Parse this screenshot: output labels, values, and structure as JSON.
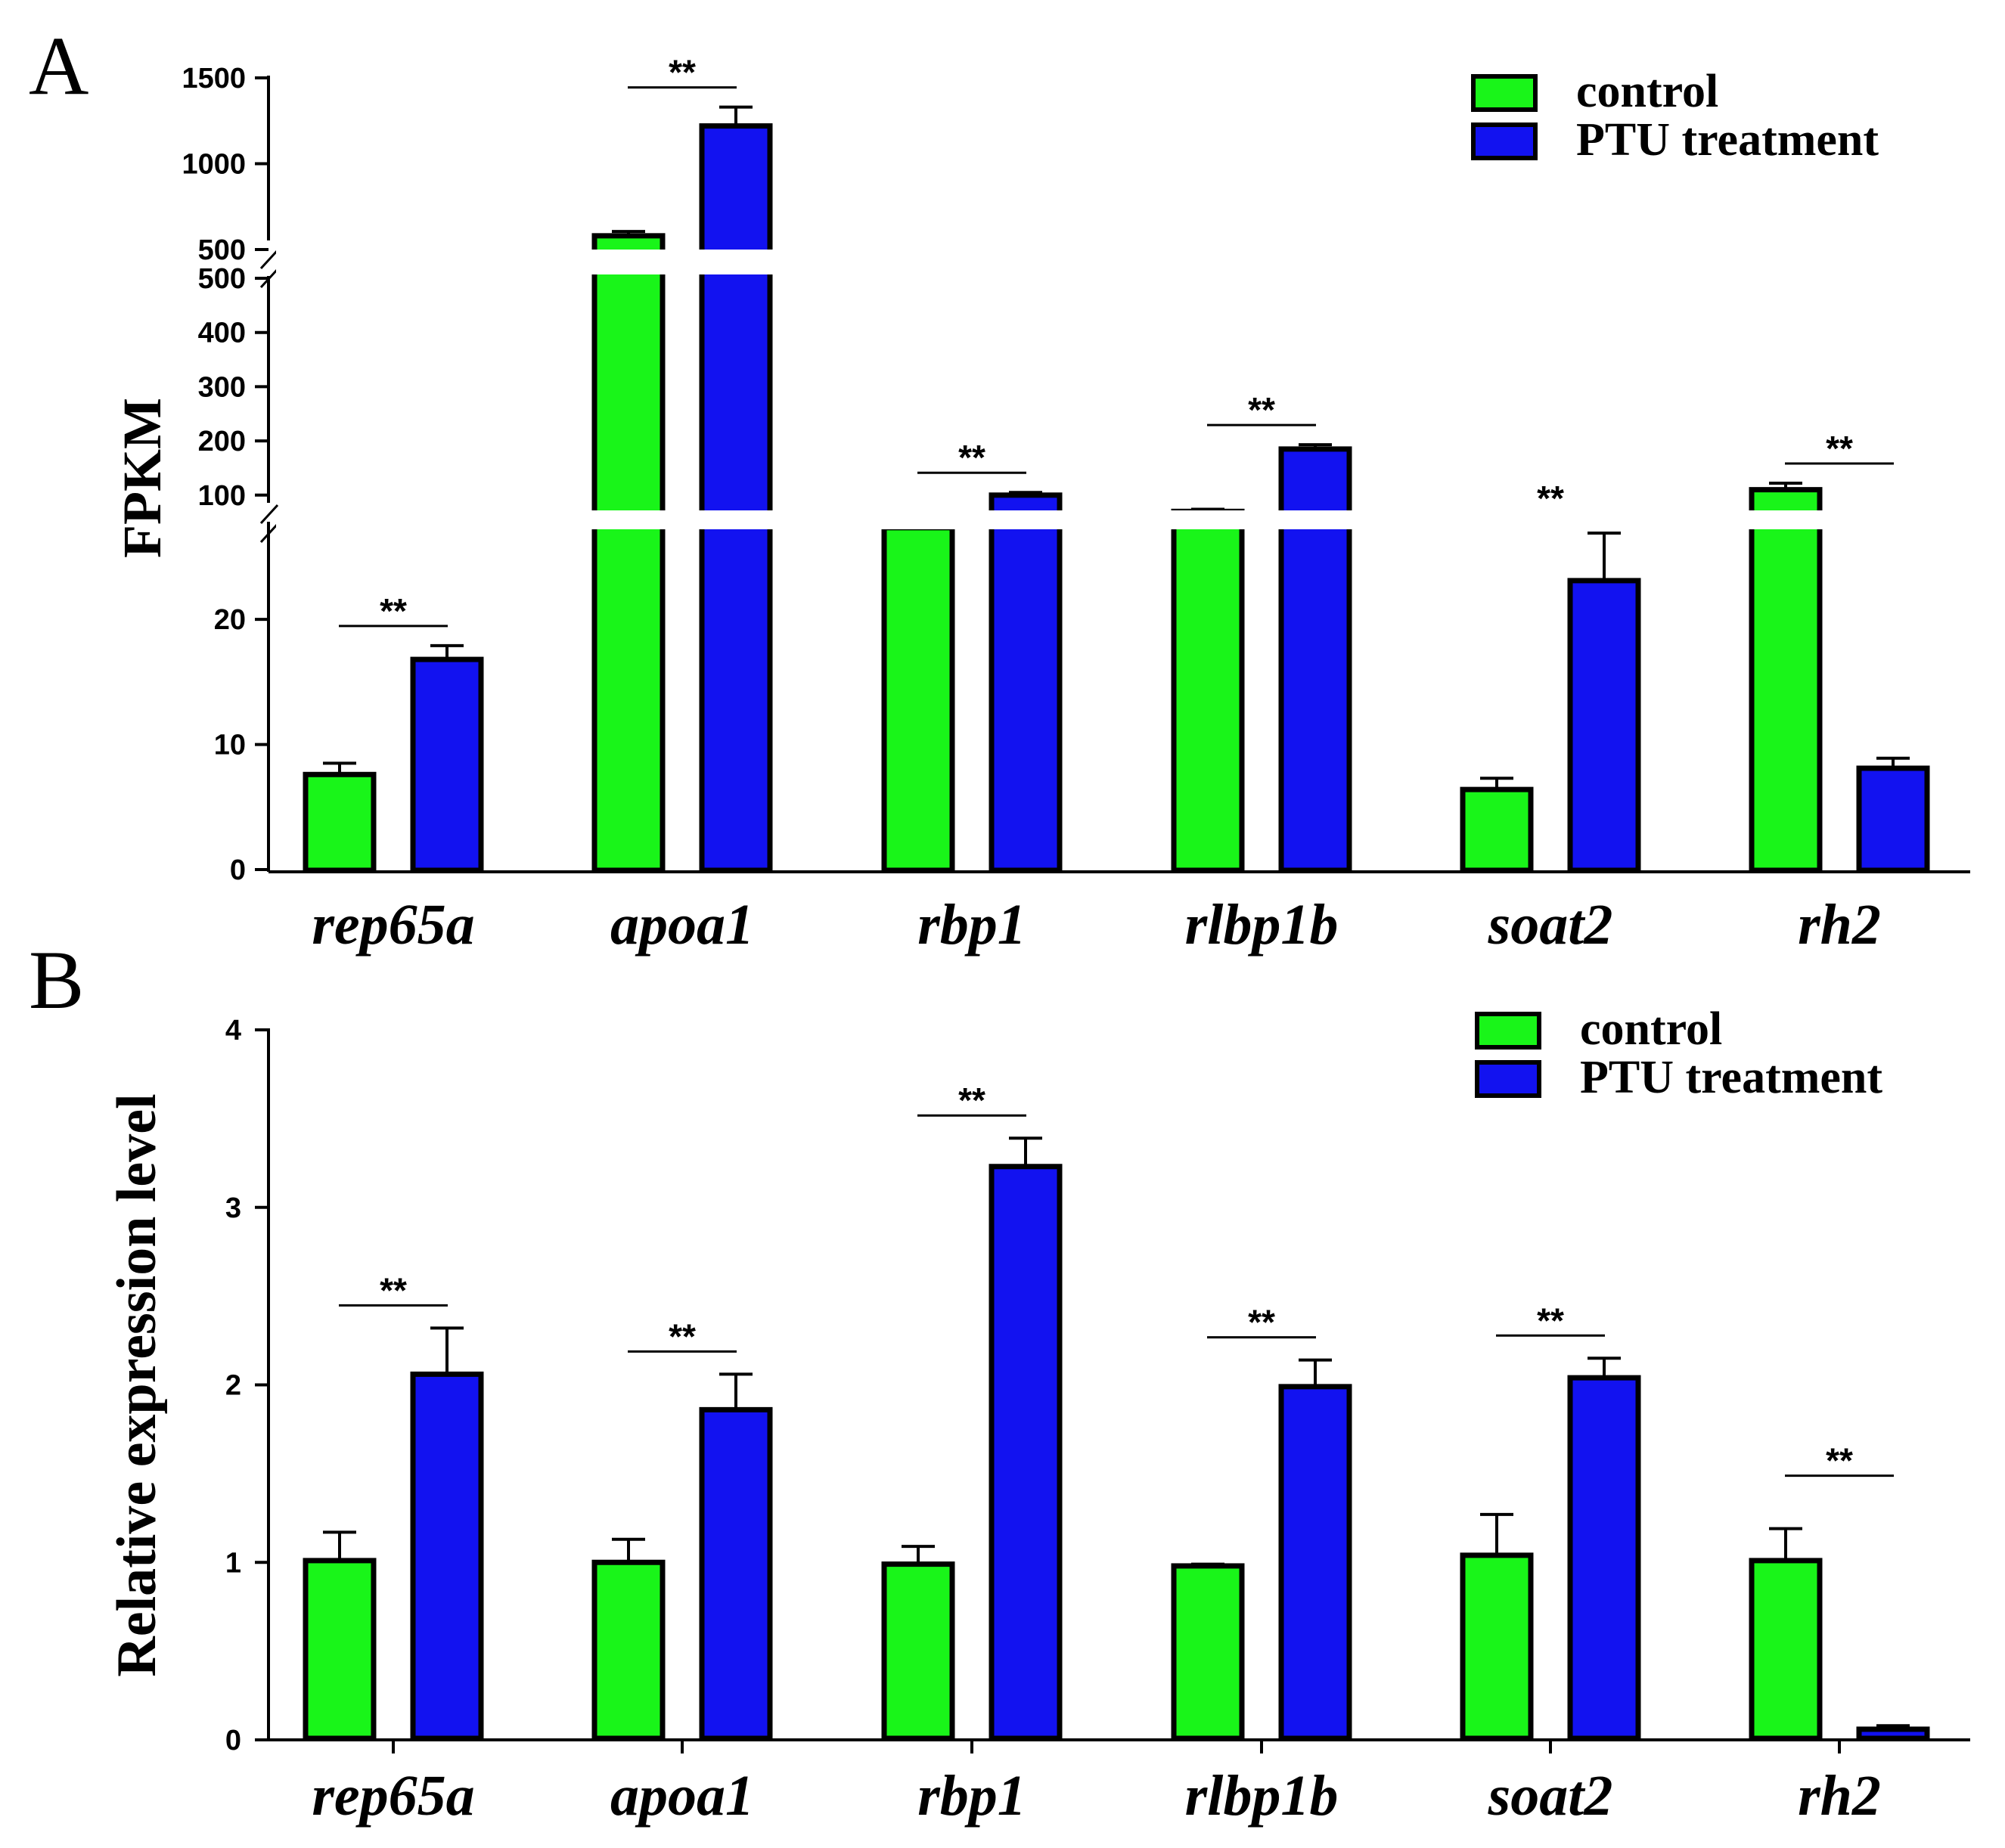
{
  "colors": {
    "control": "#19f519",
    "ptu": "#1212f0",
    "outline": "#000000"
  },
  "chart_data": [
    {
      "panel": "A",
      "type": "bar",
      "ylabel": "FPKM",
      "categories": [
        "rep65a",
        "apoa1",
        "rbp1",
        "rlbp1b",
        "soat2",
        "rh2"
      ],
      "y_segments": [
        {
          "range": [
            0,
            24
          ],
          "ticks": [
            "0",
            "10",
            "20"
          ]
        },
        {
          "range": [
            30,
            500
          ],
          "ticks": [
            "100",
            "200",
            "300",
            "400",
            "500"
          ]
        },
        {
          "range": [
            500,
            1500
          ],
          "ticks": [
            "500",
            "1000",
            "1500"
          ]
        }
      ],
      "series": [
        {
          "name": "control",
          "values": [
            7.6,
            580,
            40,
            70,
            6.4,
            110
          ],
          "errors": [
            0.9,
            25,
            3,
            4,
            0.9,
            12
          ]
        },
        {
          "name": "PTU treatment",
          "values": [
            16.8,
            1220,
            100,
            185,
            23.1,
            8.1
          ],
          "errors": [
            1.1,
            110,
            5,
            8,
            1.7,
            0.8
          ]
        }
      ],
      "significance": [
        "**",
        "**",
        "**",
        "**",
        "**",
        "**"
      ],
      "legend": {
        "position": "top-right",
        "entries": [
          "control",
          "PTU treatment"
        ]
      }
    },
    {
      "panel": "B",
      "type": "bar",
      "ylabel": "Relative expression level",
      "categories": [
        "rep65a",
        "apoa1",
        "rbp1",
        "rlbp1b",
        "soat2",
        "rh2"
      ],
      "ylim": [
        0,
        4
      ],
      "yticks": [
        "0",
        "1",
        "2",
        "3",
        "4"
      ],
      "series": [
        {
          "name": "control",
          "values": [
            1.01,
            1.0,
            0.99,
            0.98,
            1.04,
            1.01
          ],
          "errors": [
            0.16,
            0.13,
            0.1,
            0.01,
            0.23,
            0.18
          ]
        },
        {
          "name": "PTU treatment",
          "values": [
            2.06,
            1.86,
            3.23,
            1.99,
            2.04,
            0.06
          ],
          "errors": [
            0.26,
            0.2,
            0.16,
            0.15,
            0.11,
            0.02
          ]
        }
      ],
      "significance": [
        "**",
        "**",
        "**",
        "**",
        "**",
        "**"
      ],
      "legend": {
        "position": "top-right",
        "entries": [
          "control",
          "PTU treatment"
        ]
      }
    }
  ]
}
